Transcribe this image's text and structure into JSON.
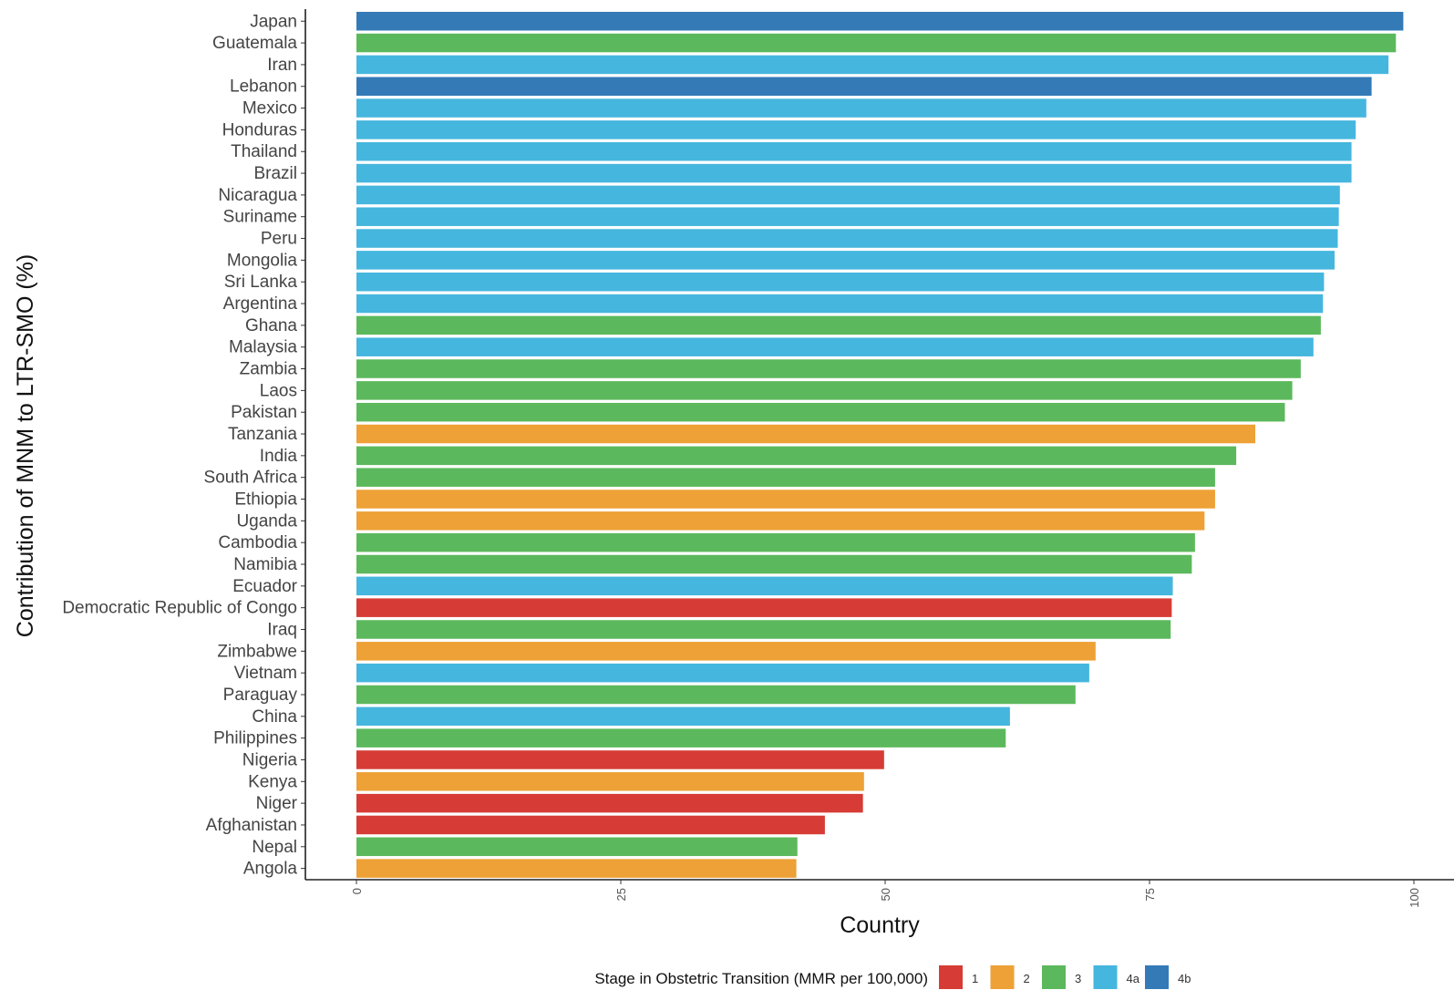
{
  "chart_data": {
    "type": "bar",
    "orientation": "horizontal",
    "xlabel": "Country",
    "ylabel": "Contribution of MNM to LTR-SMO (%)",
    "xlim": [
      0,
      100
    ],
    "xticks": [
      "0",
      "25",
      "50",
      "75",
      "100"
    ],
    "grid": false,
    "categories": [
      "Japan",
      "Guatemala",
      "Iran",
      "Lebanon",
      "Mexico",
      "Honduras",
      "Thailand",
      "Brazil",
      "Nicaragua",
      "Suriname",
      "Peru",
      "Mongolia",
      "Sri Lanka",
      "Argentina",
      "Ghana",
      "Malaysia",
      "Zambia",
      "Laos",
      "Pakistan",
      "Tanzania",
      "India",
      "South Africa",
      "Ethiopia",
      "Uganda",
      "Cambodia",
      "Namibia",
      "Ecuador",
      "Democratic Republic of Congo",
      "Iraq",
      "Zimbabwe",
      "Vietnam",
      "Paraguay",
      "China",
      "Philippines",
      "Nigeria",
      "Kenya",
      "Niger",
      "Afghanistan",
      "Nepal",
      "Angola"
    ],
    "values": [
      99.0,
      98.3,
      97.6,
      96.0,
      95.5,
      94.5,
      94.1,
      94.1,
      93.0,
      92.9,
      92.8,
      92.5,
      91.5,
      91.4,
      91.2,
      90.5,
      89.3,
      88.5,
      87.8,
      85.0,
      83.2,
      81.2,
      81.2,
      80.2,
      79.3,
      79.0,
      77.2,
      77.1,
      77.0,
      69.9,
      69.3,
      68.0,
      61.8,
      61.4,
      49.9,
      48.0,
      47.9,
      44.3,
      41.7,
      41.6
    ],
    "stages": [
      "4b",
      "3",
      "4a",
      "4b",
      "4a",
      "4a",
      "4a",
      "4a",
      "4a",
      "4a",
      "4a",
      "4a",
      "4a",
      "4a",
      "3",
      "4a",
      "3",
      "3",
      "3",
      "2",
      "3",
      "3",
      "2",
      "2",
      "3",
      "3",
      "4a",
      "1",
      "3",
      "2",
      "4a",
      "3",
      "4a",
      "3",
      "1",
      "2",
      "1",
      "1",
      "3",
      "2"
    ],
    "legend": {
      "title": "Stage in Obstetric Transition (MMR per 100,000)",
      "position": "bottom",
      "items": [
        {
          "label": "1",
          "color": "#d63c35"
        },
        {
          "label": "2",
          "color": "#eda136"
        },
        {
          "label": "3",
          "color": "#5cb85c"
        },
        {
          "label": "4a",
          "color": "#45b6de"
        },
        {
          "label": "4b",
          "color": "#337ab7"
        }
      ]
    }
  }
}
